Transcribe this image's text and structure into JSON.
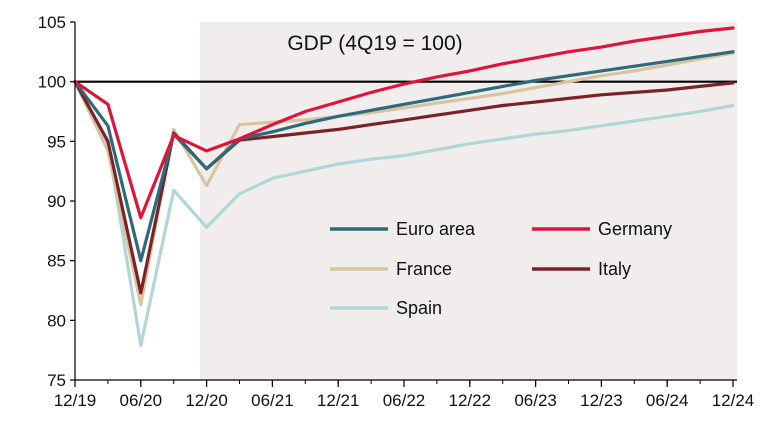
{
  "chart_data": {
    "type": "line",
    "title": "GDP (4Q19 = 100)",
    "xlabel": "",
    "ylabel": "",
    "ylim": [
      75,
      105
    ],
    "yticks": [
      75,
      80,
      85,
      90,
      95,
      100,
      105
    ],
    "x_tick_labels": [
      "12/19",
      "06/20",
      "12/20",
      "06/21",
      "12/21",
      "06/22",
      "12/22",
      "06/23",
      "12/23",
      "06/24",
      "12/24"
    ],
    "quarters": [
      "Q4 19",
      "Q1 20",
      "Q2 20",
      "Q3 20",
      "Q4 20",
      "Q1 21",
      "Q2 21",
      "Q3 21",
      "Q4 21",
      "Q1 22",
      "Q2 22",
      "Q3 22",
      "Q4 22",
      "Q1 23",
      "Q2 23",
      "Q3 23",
      "Q4 23",
      "Q1 24",
      "Q2 24",
      "Q3 24",
      "Q4 24"
    ],
    "forecast_start_index": 3.8,
    "reference_line": 100,
    "series": [
      {
        "name": "Euro area",
        "color": "#2d6b78",
        "values": [
          100,
          96.3,
          85.0,
          95.6,
          92.7,
          95.2,
          95.8,
          96.5,
          97.1,
          97.6,
          98.1,
          98.6,
          99.1,
          99.6,
          100.1,
          100.5,
          100.9,
          101.3,
          101.7,
          102.1,
          102.5
        ]
      },
      {
        "name": "Germany",
        "color": "#e0133a",
        "values": [
          100,
          98.1,
          88.6,
          95.5,
          94.2,
          95.2,
          96.4,
          97.5,
          98.3,
          99.1,
          99.8,
          100.4,
          100.9,
          101.5,
          102.0,
          102.5,
          102.9,
          103.4,
          103.8,
          104.2,
          104.5
        ]
      },
      {
        "name": "France",
        "color": "#d8c4a0",
        "values": [
          100,
          94.2,
          81.3,
          96.0,
          91.3,
          96.4,
          96.6,
          96.8,
          97.1,
          97.4,
          97.8,
          98.2,
          98.6,
          99.0,
          99.5,
          100.0,
          100.5,
          100.9,
          101.4,
          101.9,
          102.4
        ]
      },
      {
        "name": "Italy",
        "color": "#7b2228",
        "values": [
          100,
          95.0,
          82.3,
          95.7,
          92.7,
          95.1,
          95.4,
          95.7,
          96.0,
          96.4,
          96.8,
          97.2,
          97.6,
          98.0,
          98.3,
          98.6,
          98.9,
          99.1,
          99.3,
          99.6,
          99.9
        ]
      },
      {
        "name": "Spain",
        "color": "#b1d6d7",
        "values": [
          100,
          94.8,
          77.9,
          90.9,
          87.8,
          90.6,
          91.9,
          92.5,
          93.1,
          93.5,
          93.8,
          94.3,
          94.8,
          95.2,
          95.6,
          95.9,
          96.3,
          96.7,
          97.1,
          97.5,
          98.0
        ]
      }
    ],
    "legend": {
      "placement": "lower-right",
      "order": [
        "Euro area",
        "Germany",
        "France",
        "Italy",
        "Spain"
      ]
    },
    "colors": {
      "forecast_shading": "#f1eded",
      "axis": "#000000"
    }
  }
}
